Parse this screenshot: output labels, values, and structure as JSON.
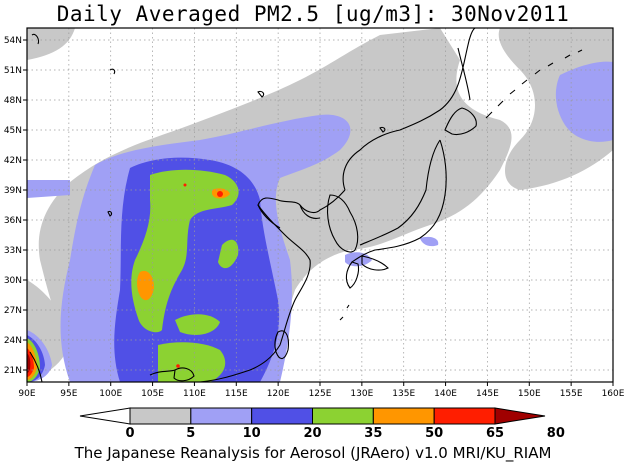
{
  "title": "Daily Averaged PM2.5 [ug/m3]: 30Nov2011",
  "credit": "The Japanese Reanalysis for Aerosol (JRAero) v1.0 MRI/KU_RIAM",
  "map": {
    "lon_labels": [
      "90E",
      "95E",
      "100E",
      "105E",
      "110E",
      "115E",
      "120E",
      "125E",
      "130E",
      "135E",
      "140E",
      "145E",
      "150E",
      "155E",
      "160E"
    ],
    "lat_labels": [
      "21N",
      "24N",
      "27N",
      "30N",
      "33N",
      "36N",
      "39N",
      "42N",
      "45N",
      "48N",
      "51N",
      "54N"
    ]
  },
  "colorbar": {
    "tick_labels": [
      "0",
      "5",
      "10",
      "20",
      "35",
      "50",
      "65",
      "80"
    ],
    "colors": [
      "#ffffff",
      "#c8c8c8",
      "#a0a0f5",
      "#5050e6",
      "#8cd232",
      "#ff9600",
      "#ff1e00",
      "#a00000"
    ]
  }
}
